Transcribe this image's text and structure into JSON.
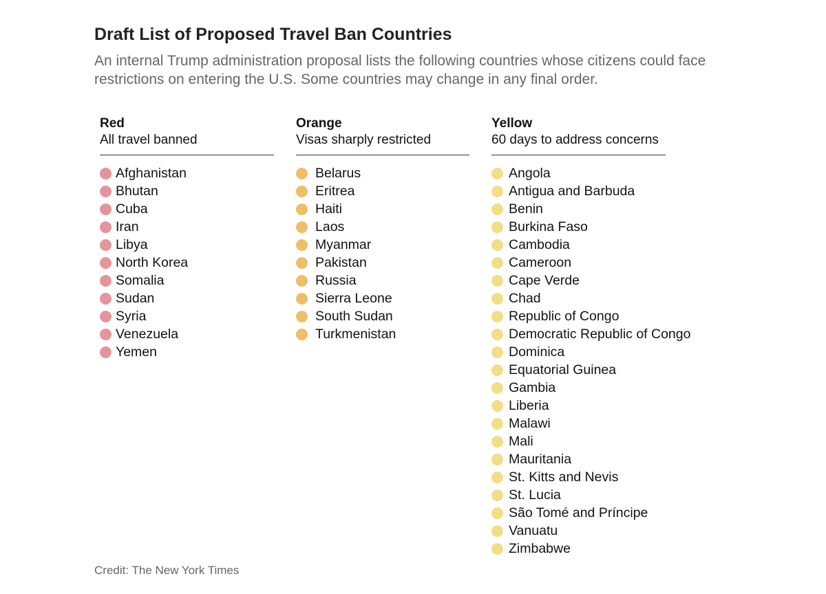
{
  "title": "Draft List of Proposed Travel Ban Countries",
  "subtitle": "An internal Trump administration proposal lists the following countries whose citizens could face restrictions on entering the U.S. Some countries may change in any final order.",
  "columns": [
    {
      "name": "Red",
      "description": "All travel banned",
      "color": "#e5949b",
      "countries": [
        "Afghanistan",
        "Bhutan",
        "Cuba",
        "Iran",
        "Libya",
        "North Korea",
        "Somalia",
        "Sudan",
        "Syria",
        "Venezuela",
        "Yemen"
      ]
    },
    {
      "name": "Orange",
      "description": "Visas sharply restricted",
      "color": "#f0bd69",
      "countries": [
        "Belarus",
        "Eritrea",
        "Haiti",
        "Laos",
        "Myanmar",
        "Pakistan",
        "Russia",
        "Sierra Leone",
        "South Sudan",
        "Turkmenistan"
      ]
    },
    {
      "name": "Yellow",
      "description": "60 days to address concerns",
      "color": "#f2de86",
      "countries": [
        "Angola",
        "Antigua and Barbuda",
        "Benin",
        "Burkina Faso",
        "Cambodia",
        "Cameroon",
        "Cape Verde",
        "Chad",
        "Republic of Congo",
        "Democratic Republic of Congo",
        "Dominica",
        "Equatorial Guinea",
        "Gambia",
        "Liberia",
        "Malawi",
        "Mali",
        "Mauritania",
        "St. Kitts and Nevis",
        "St. Lucia",
        "São Tomé and Príncipe",
        "Vanuatu",
        "Zimbabwe"
      ]
    }
  ],
  "credit": "Credit: The New York Times"
}
